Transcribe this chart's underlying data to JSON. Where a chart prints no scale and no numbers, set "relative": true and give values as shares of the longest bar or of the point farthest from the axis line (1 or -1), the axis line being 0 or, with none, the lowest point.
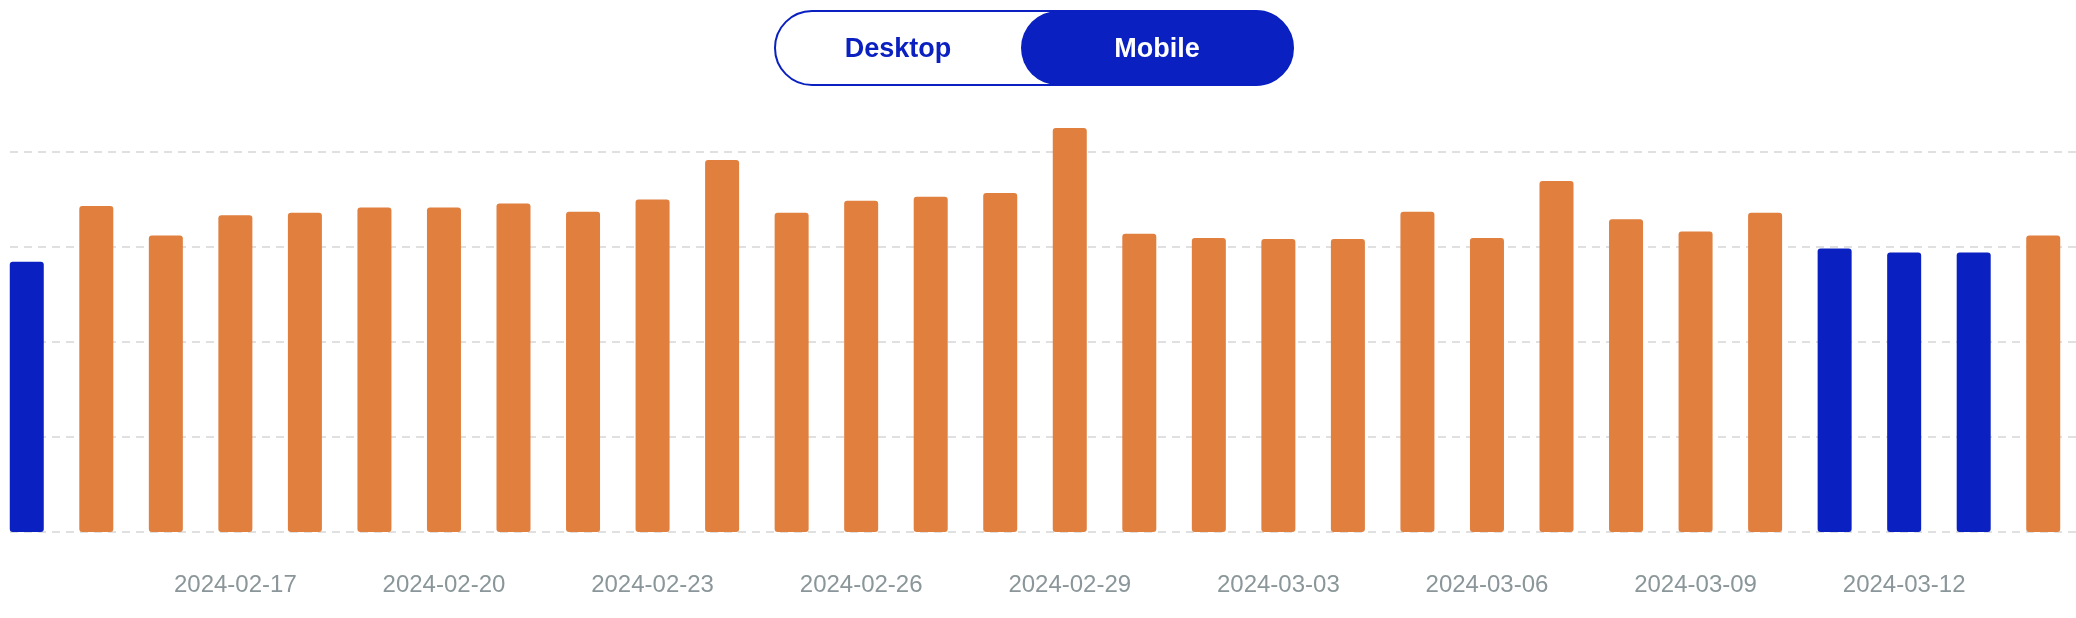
{
  "chart_data": {
    "type": "bar",
    "relative": true,
    "grid": true,
    "annotations": [
      "Desktop",
      "Mobile"
    ],
    "categories": [
      null,
      null,
      null,
      "2024-02-17",
      null,
      null,
      "2024-02-20",
      null,
      null,
      "2024-02-23",
      null,
      null,
      "2024-02-26",
      null,
      null,
      "2024-02-29",
      null,
      null,
      "2024-03-03",
      null,
      null,
      "2024-03-06",
      null,
      null,
      "2024-03-09",
      null,
      null,
      "2024-03-12",
      null,
      null
    ],
    "values": [
      0.669,
      0.807,
      0.734,
      0.784,
      0.79,
      0.803,
      0.803,
      0.813,
      0.793,
      0.823,
      0.921,
      0.79,
      0.82,
      0.83,
      0.839,
      1,
      0.738,
      0.728,
      0.725,
      0.725,
      0.793,
      0.728,
      0.869,
      0.774,
      0.744,
      0.79,
      0.702,
      0.692,
      0.692,
      0.734
    ],
    "colors": [
      "#0a20c0",
      "#e07f3e",
      "#e07f3e",
      "#e07f3e",
      "#e07f3e",
      "#e07f3e",
      "#e07f3e",
      "#e07f3e",
      "#e07f3e",
      "#e07f3e",
      "#e07f3e",
      "#e07f3e",
      "#e07f3e",
      "#e07f3e",
      "#e07f3e",
      "#e07f3e",
      "#e07f3e",
      "#e07f3e",
      "#e07f3e",
      "#e07f3e",
      "#e07f3e",
      "#e07f3e",
      "#e07f3e",
      "#e07f3e",
      "#e07f3e",
      "#e07f3e",
      "#0a20c0",
      "#0a20c0",
      "#0a20c0",
      "#e07f3e"
    ]
  }
}
